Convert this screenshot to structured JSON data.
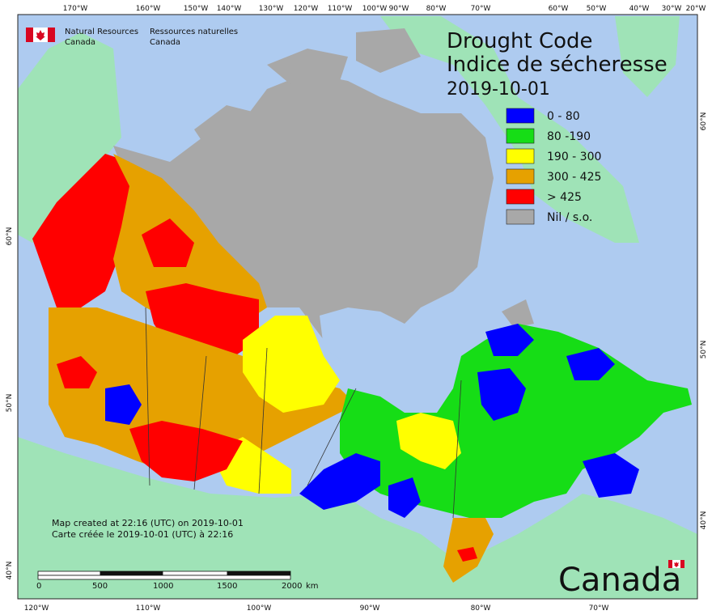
{
  "header": {
    "agency_en_line1": "Natural Resources",
    "agency_en_line2": "Canada",
    "agency_fr_line1": "Ressources naturelles",
    "agency_fr_line2": "Canada"
  },
  "title": {
    "line1": "Drought Code",
    "line2": "Indice de sécheresse",
    "date": "2019-10-01"
  },
  "legend": [
    {
      "label": "0 - 80",
      "color": "#0000ff"
    },
    {
      "label": "80 -190",
      "color": "#16dd16"
    },
    {
      "label": "190 - 300",
      "color": "#ffff00"
    },
    {
      "label": "300 - 425",
      "color": "#e6a100"
    },
    {
      "label": "> 425",
      "color": "#ff0000"
    },
    {
      "label": "Nil / s.o.",
      "color": "#a8a8a8"
    }
  ],
  "top_longitudes": [
    "170°W",
    "160°W",
    "150°W",
    "140°W",
    "130°W",
    "120°W",
    "110°W",
    "100°W",
    "90°W",
    "80°W",
    "70°W",
    "60°W",
    "50°W",
    "40°W",
    "30°W",
    "20°W"
  ],
  "bottom_longitudes": [
    "120°W",
    "110°W",
    "100°W",
    "90°W",
    "80°W",
    "70°W"
  ],
  "left_latitudes": [
    "60°N",
    "50°N",
    "40°N"
  ],
  "right_latitudes": [
    "60°N",
    "50°N",
    "40°N"
  ],
  "credit": {
    "line1": "Map created at 22:16 (UTC) on 2019-10-01",
    "line2": "Carte créée le 2019-10-01 (UTC) à 22:16"
  },
  "scale_bar": {
    "ticks": [
      "0",
      "500",
      "1000",
      "1500",
      "2000"
    ],
    "unit": "km"
  },
  "wordmark": "Canada",
  "colors": {
    "ocean": "#aecbf0",
    "land": "#9fe3b7",
    "nil": "#a8a8a8"
  }
}
